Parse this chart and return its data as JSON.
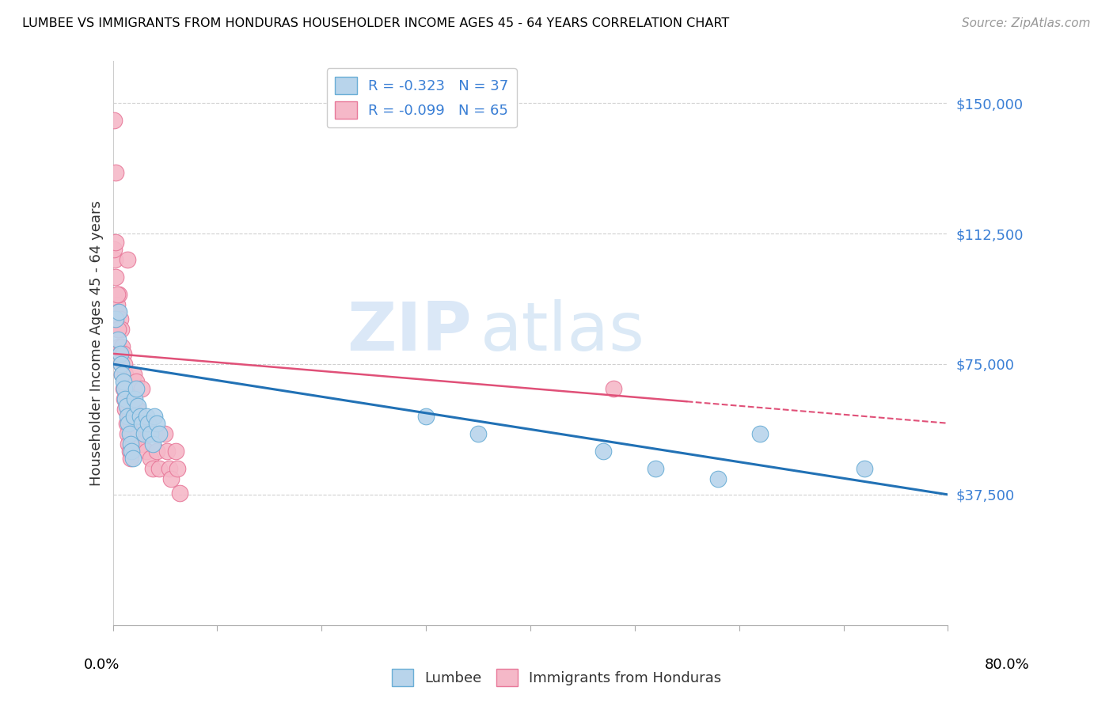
{
  "title": "LUMBEE VS IMMIGRANTS FROM HONDURAS HOUSEHOLDER INCOME AGES 45 - 64 YEARS CORRELATION CHART",
  "source": "Source: ZipAtlas.com",
  "ylabel": "Householder Income Ages 45 - 64 years",
  "xlim": [
    0.0,
    0.8
  ],
  "ylim": [
    0,
    162000
  ],
  "lumbee_color": "#b8d4eb",
  "honduras_color": "#f5b8c8",
  "lumbee_edge_color": "#6aaed6",
  "honduras_edge_color": "#e8799a",
  "lumbee_line_color": "#2171b5",
  "honduras_line_color": "#e05078",
  "lumbee_R": -0.323,
  "lumbee_N": 37,
  "honduras_R": -0.099,
  "honduras_N": 65,
  "ytick_positions": [
    0,
    37500,
    75000,
    112500,
    150000
  ],
  "ytick_labels": [
    "",
    "$37,500",
    "$75,000",
    "$112,500",
    "$150,000"
  ],
  "xtick_positions": [
    0.0,
    0.1,
    0.2,
    0.3,
    0.4,
    0.5,
    0.6,
    0.7,
    0.8
  ],
  "watermark_zip": "ZIP",
  "watermark_atlas": "atlas",
  "lumbee_x": [
    0.003,
    0.005,
    0.006,
    0.007,
    0.008,
    0.009,
    0.01,
    0.011,
    0.012,
    0.013,
    0.014,
    0.015,
    0.016,
    0.017,
    0.018,
    0.019,
    0.02,
    0.021,
    0.022,
    0.024,
    0.026,
    0.028,
    0.03,
    0.032,
    0.034,
    0.036,
    0.038,
    0.04,
    0.042,
    0.044,
    0.3,
    0.35,
    0.47,
    0.52,
    0.58,
    0.62,
    0.72
  ],
  "lumbee_y": [
    88000,
    82000,
    90000,
    78000,
    75000,
    72000,
    70000,
    68000,
    65000,
    63000,
    60000,
    58000,
    55000,
    52000,
    50000,
    48000,
    60000,
    65000,
    68000,
    63000,
    60000,
    58000,
    55000,
    60000,
    58000,
    55000,
    52000,
    60000,
    58000,
    55000,
    60000,
    55000,
    50000,
    45000,
    42000,
    55000,
    45000
  ],
  "honduras_x": [
    0.001,
    0.002,
    0.003,
    0.004,
    0.005,
    0.005,
    0.006,
    0.006,
    0.007,
    0.007,
    0.008,
    0.008,
    0.009,
    0.009,
    0.01,
    0.01,
    0.011,
    0.011,
    0.012,
    0.012,
    0.013,
    0.013,
    0.014,
    0.014,
    0.015,
    0.015,
    0.016,
    0.016,
    0.017,
    0.017,
    0.018,
    0.018,
    0.019,
    0.02,
    0.02,
    0.022,
    0.022,
    0.024,
    0.025,
    0.026,
    0.028,
    0.03,
    0.032,
    0.034,
    0.036,
    0.038,
    0.04,
    0.042,
    0.044,
    0.05,
    0.052,
    0.054,
    0.056,
    0.06,
    0.062,
    0.064,
    0.001,
    0.002,
    0.003,
    0.004,
    0.005,
    0.003,
    0.014,
    0.028,
    0.48
  ],
  "honduras_y": [
    145000,
    105000,
    100000,
    92000,
    90000,
    85000,
    80000,
    95000,
    88000,
    78000,
    85000,
    75000,
    80000,
    72000,
    78000,
    68000,
    75000,
    65000,
    72000,
    62000,
    68000,
    58000,
    65000,
    55000,
    62000,
    52000,
    60000,
    50000,
    58000,
    48000,
    55000,
    62000,
    52000,
    72000,
    65000,
    58000,
    70000,
    62000,
    55000,
    60000,
    52000,
    58000,
    50000,
    55000,
    48000,
    45000,
    55000,
    50000,
    45000,
    55000,
    50000,
    45000,
    42000,
    50000,
    45000,
    38000,
    108000,
    88000,
    110000,
    95000,
    85000,
    130000,
    105000,
    68000,
    68000
  ]
}
